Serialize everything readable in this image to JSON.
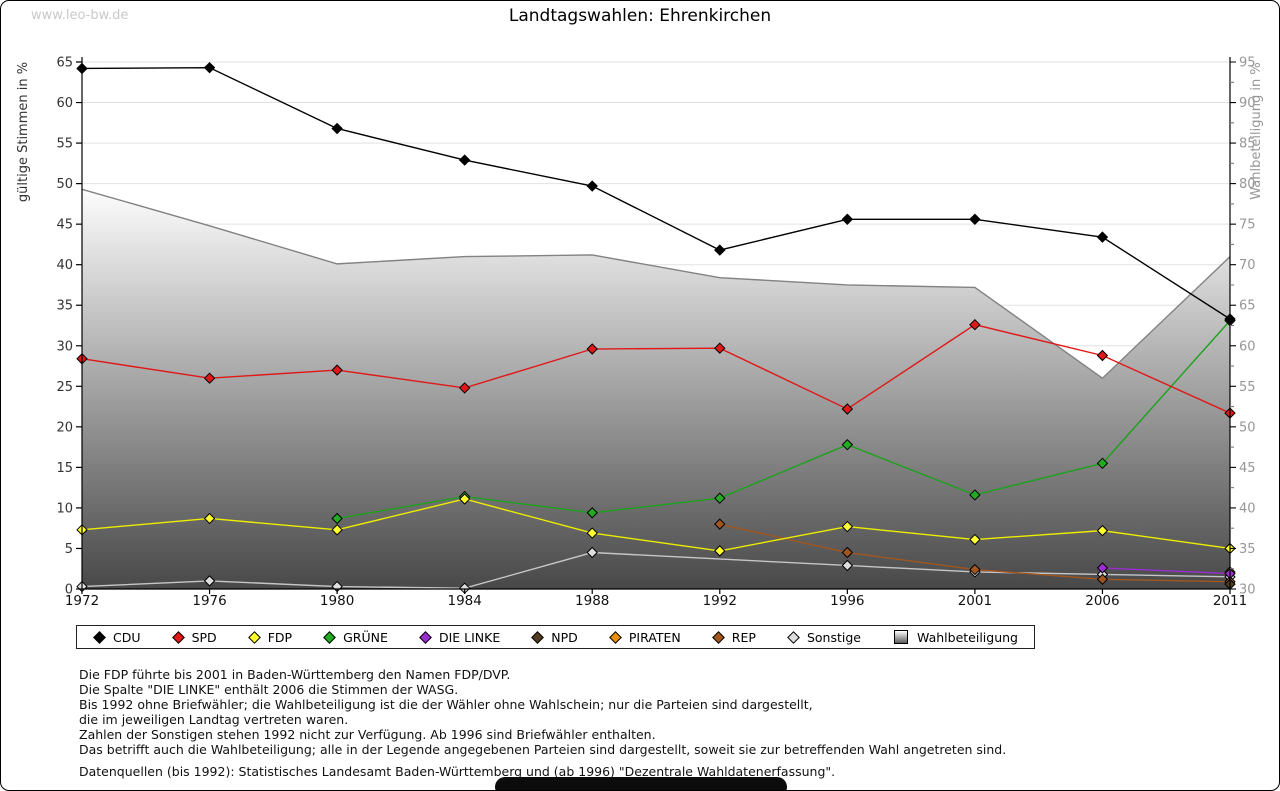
{
  "watermark": "www.leo-bw.de",
  "source": "Datenquellen (bis 1992): Statistisches Landesamt Baden-Württemberg und (ab 1996) \"Dezentrale Wahldatenerfassung\".",
  "notes": [
    "Die FDP führte bis 2001 in Baden-Württemberg den Namen FDP/DVP.",
    "Die Spalte \"DIE LINKE\" enthält 2006 die Stimmen der WASG.",
    "Bis 1992 ohne Briefwähler; die Wahlbeteiligung ist die der Wähler ohne Wahlschein; nur die Parteien sind dargestellt,",
    "die im jeweiligen Landtag vertreten waren.",
    "Zahlen der Sonstigen stehen 1992 nicht zur Verfügung. Ab 1996 sind Briefwähler enthalten.",
    "Das betrifft auch die Wahlbeteiligung; alle in der Legende angegebenen Parteien sind dargestellt, soweit sie zur betreffenden Wahl angetreten sind."
  ],
  "chart_data": {
    "type": "line",
    "title": "Landtagswahlen: Ehrenkirchen",
    "categories": [
      "1972",
      "1976",
      "1980",
      "1984",
      "1988",
      "1992",
      "1996",
      "2001",
      "2006",
      "2011"
    ],
    "left_axis": {
      "label": "gültige Stimmen in %",
      "min": 0,
      "max": 65,
      "step": 5
    },
    "right_axis": {
      "label": "Wahlbeteiligung in %",
      "min": 30,
      "max": 95,
      "step": 5
    },
    "grid": true,
    "legend_position": "bottom",
    "series": [
      {
        "name": "CDU",
        "type": "line",
        "axis": "left",
        "color": "#000000",
        "fill": "#000000",
        "values": {
          "1972": 64.2,
          "1976": 64.3,
          "1980": 56.8,
          "1984": 52.9,
          "1988": 49.7,
          "1992": 41.8,
          "1996": 45.6,
          "2001": 45.6,
          "2006": 43.4,
          "2011": 33.3
        }
      },
      {
        "name": "SPD",
        "type": "line",
        "axis": "left",
        "color": "#e01818",
        "fill": "#e01818",
        "values": {
          "1972": 28.4,
          "1976": 26.0,
          "1980": 27.0,
          "1984": 24.8,
          "1988": 29.6,
          "1992": 29.7,
          "1996": 22.2,
          "2001": 32.6,
          "2006": 28.8,
          "2011": 21.7
        }
      },
      {
        "name": "FDP",
        "type": "line",
        "axis": "left",
        "color": "#eded00",
        "fill": "#ffff2e",
        "values": {
          "1972": 7.3,
          "1976": 8.7,
          "1980": 7.3,
          "1984": 11.1,
          "1988": 6.9,
          "1992": 4.7,
          "1996": 7.7,
          "2001": 6.1,
          "2006": 7.2,
          "2011": 5.0
        }
      },
      {
        "name": "GRÜNE",
        "type": "line",
        "axis": "left",
        "color": "#1da11d",
        "fill": "#22aa22",
        "values": {
          "1980": 8.7,
          "1984": 11.4,
          "1988": 9.4,
          "1992": 11.2,
          "1996": 17.8,
          "2001": 11.6,
          "2006": 15.5,
          "2011": 33.1
        }
      },
      {
        "name": "DIE LINKE",
        "type": "line",
        "axis": "left",
        "color": "#9a2fd0",
        "fill": "#9a2fd0",
        "values": {
          "2006": 2.6,
          "2011": 1.9
        }
      },
      {
        "name": "NPD",
        "type": "line",
        "axis": "left",
        "color": "#513c22",
        "fill": "#513c22",
        "values": {
          "2011": 0.6
        }
      },
      {
        "name": "PIRATEN",
        "type": "line",
        "axis": "left",
        "color": "#e8900c",
        "fill": "#e8900c",
        "values": {
          "2011": 2.1
        }
      },
      {
        "name": "REP",
        "type": "line",
        "axis": "left",
        "color": "#a2561f",
        "fill": "#a2561f",
        "values": {
          "1992": 8.0,
          "1996": 4.5,
          "2001": 2.4,
          "2006": 1.2,
          "2011": 0.9
        }
      },
      {
        "name": "Sonstige",
        "type": "line",
        "axis": "left",
        "color": "#c6c6c6",
        "fill": "#dedede",
        "values": {
          "1972": 0.3,
          "1976": 1.0,
          "1980": 0.3,
          "1984": 0.1,
          "1988": 4.5,
          "1996": 2.9,
          "2001": 2.1,
          "2006": 1.8,
          "2011": 1.5
        }
      },
      {
        "name": "Wahlbeteiligung",
        "type": "area",
        "axis": "right",
        "color": "#828282",
        "fill": "gradient",
        "values": {
          "1972": 79.3,
          "1976": 74.8,
          "1980": 70.1,
          "1984": 71.0,
          "1988": 71.2,
          "1992": 68.4,
          "1996": 67.5,
          "2001": 67.2,
          "2006": 56.0,
          "2011": 71.0
        }
      }
    ]
  }
}
